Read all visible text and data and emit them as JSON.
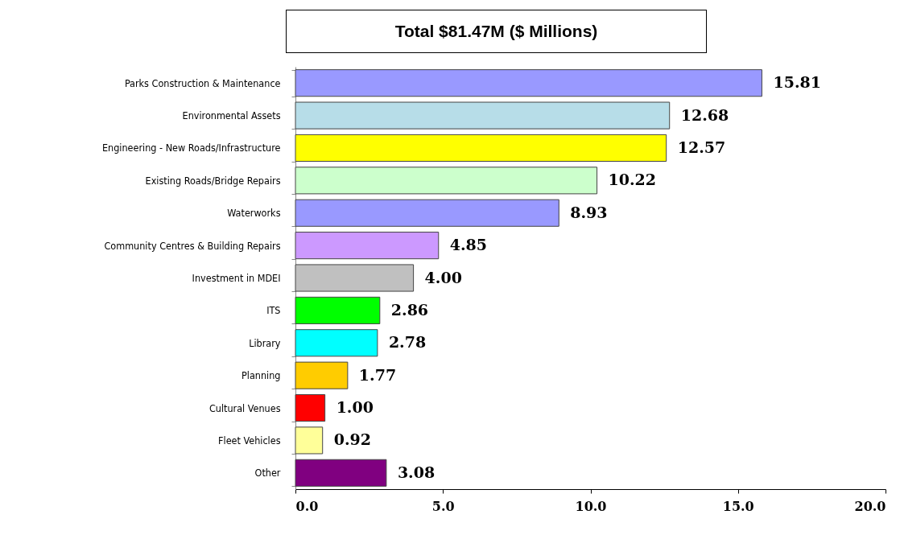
{
  "chart_data": {
    "type": "bar",
    "orientation": "horizontal",
    "title": "Total $81.47M ($ Millions)",
    "categories": [
      "Parks Construction & Maintenance",
      "Environmental Assets",
      "Engineering - New Roads/Infrastructure",
      "Existing Roads/Bridge Repairs",
      "Waterworks",
      "Community Centres & Building Repairs",
      "Investment in MDEI",
      "ITS",
      "Library",
      "Planning",
      "Cultural Venues",
      "Fleet Vehicles",
      "Other"
    ],
    "values": [
      15.81,
      12.68,
      12.57,
      10.22,
      8.93,
      4.85,
      4.0,
      2.86,
      2.78,
      1.77,
      1.0,
      0.92,
      3.08
    ],
    "colors": [
      "#9999ff",
      "#b7dde8",
      "#ffff00",
      "#ccffcc",
      "#9999ff",
      "#cc99ff",
      "#c0c0c0",
      "#00ff00",
      "#00ffff",
      "#ffcc00",
      "#ff0000",
      "#ffff99",
      "#800080"
    ],
    "xlim": [
      0,
      20
    ],
    "xticks": [
      {
        "value": 0,
        "label": "0.0"
      },
      {
        "value": 5,
        "label": "5.0"
      },
      {
        "value": 10,
        "label": "10.0"
      },
      {
        "value": 15,
        "label": "15.0"
      },
      {
        "value": 20,
        "label": "20.0"
      }
    ],
    "value_labels": [
      "15.81",
      "12.68",
      "12.57",
      "10.22",
      "8.93",
      "4.85",
      "4.00",
      "2.86",
      "2.78",
      "1.77",
      "1.00",
      "0.92",
      "3.08"
    ]
  }
}
